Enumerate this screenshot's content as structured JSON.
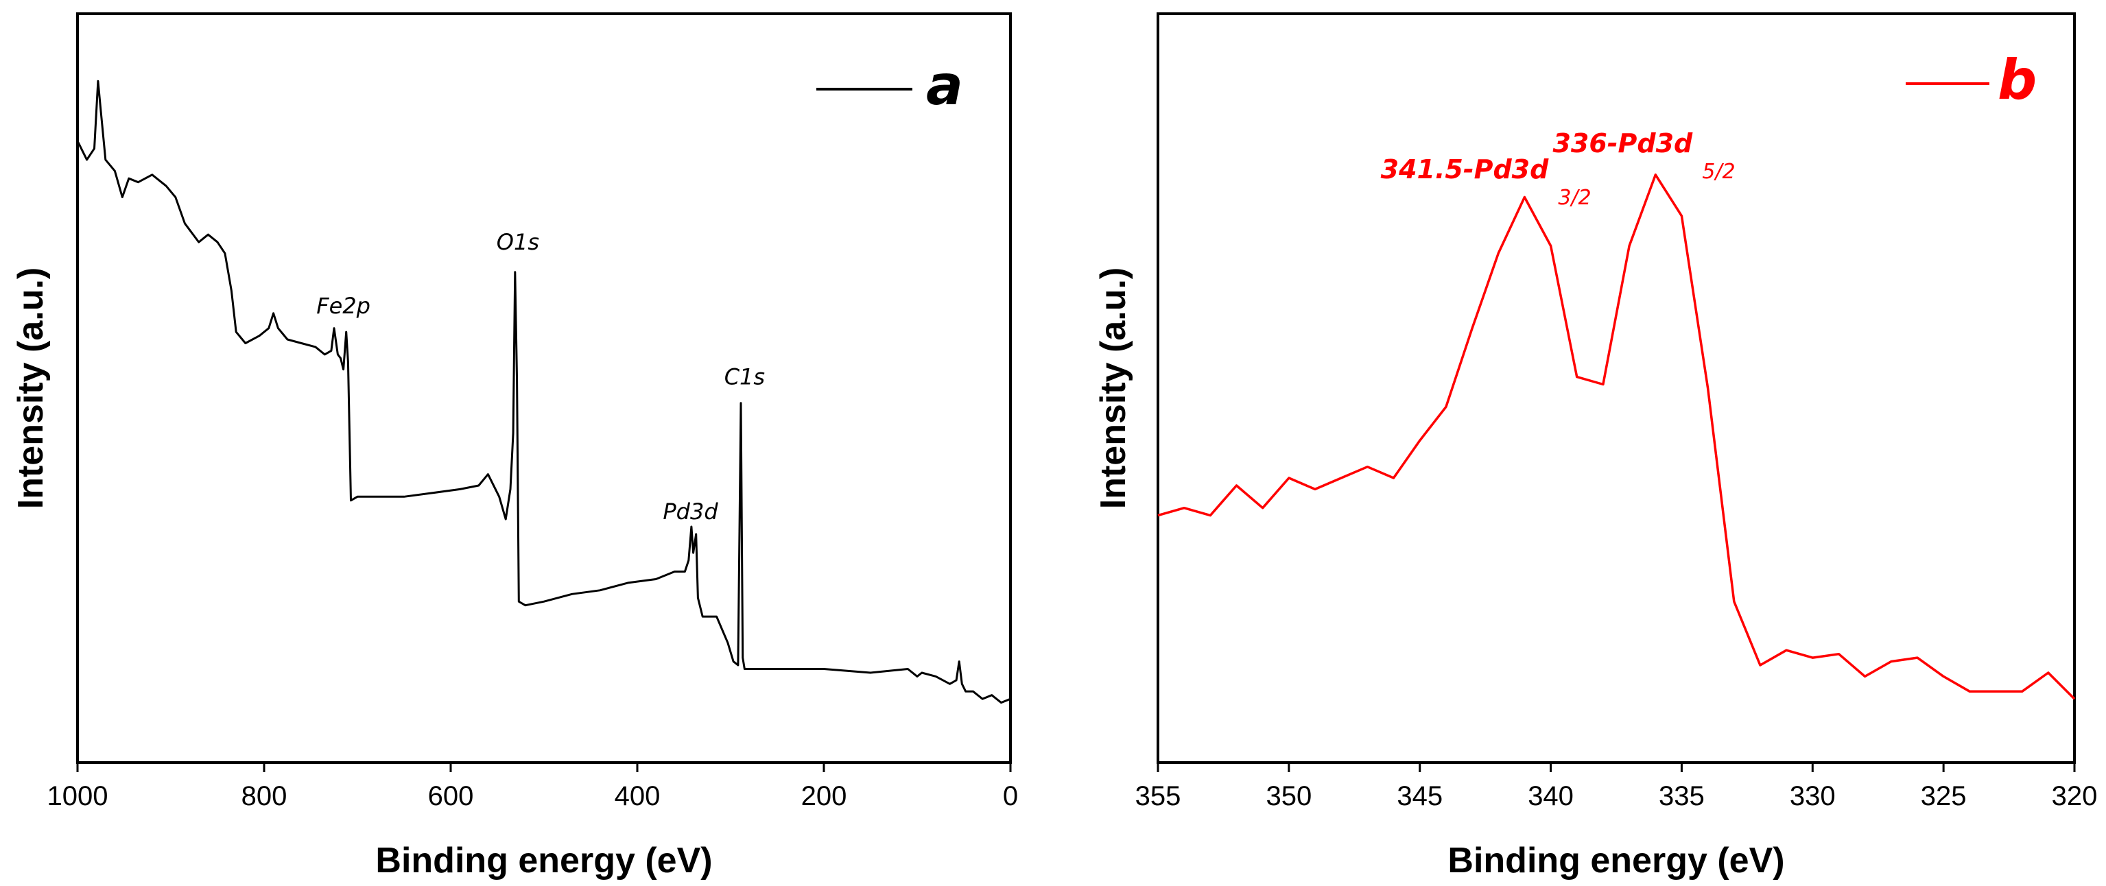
{
  "chart_data": [
    {
      "type": "line",
      "panel": "a",
      "xlabel": "Binding energy (eV)",
      "ylabel": "Intensity (a.u.)",
      "xlim": [
        1000,
        0
      ],
      "x_reversed": true,
      "ylim": [
        0,
        100
      ],
      "x_ticks": [
        1000,
        800,
        600,
        400,
        200,
        0
      ],
      "legend": {
        "label": "a",
        "color": "#000000",
        "position": "top-right"
      },
      "series": [
        {
          "name": "a",
          "color": "#000000",
          "x": [
            1000,
            990,
            982,
            978,
            975,
            970,
            960,
            952,
            945,
            935,
            920,
            905,
            895,
            885,
            870,
            860,
            850,
            842,
            835,
            830,
            820,
            805,
            795,
            790,
            785,
            775,
            760,
            745,
            735,
            728,
            725,
            721,
            718,
            715,
            712,
            710,
            707,
            700,
            680,
            650,
            620,
            590,
            570,
            560,
            548,
            541,
            536,
            533,
            531,
            529,
            527,
            520,
            500,
            470,
            440,
            410,
            380,
            360,
            349,
            345,
            342,
            340,
            337,
            335,
            330,
            315,
            303,
            297,
            292,
            289,
            287,
            285,
            283,
            280,
            265,
            230,
            200,
            150,
            110,
            100,
            95,
            80,
            65,
            58,
            55,
            52,
            48,
            40,
            30,
            20,
            10,
            0
          ],
          "y": [
            83,
            80.5,
            82,
            91,
            87,
            80.5,
            79,
            75.5,
            78,
            77.5,
            78.5,
            77,
            75.5,
            72,
            69.5,
            70.5,
            69.5,
            68,
            63,
            57.5,
            56,
            57,
            58,
            60,
            58,
            56.5,
            56,
            55.5,
            54.5,
            55,
            58,
            54.5,
            54,
            52.5,
            57.5,
            53.5,
            35,
            35.5,
            35.5,
            35.5,
            36,
            36.5,
            37,
            38.5,
            35.5,
            32.5,
            36.5,
            44,
            65.5,
            51,
            21.5,
            21,
            21.5,
            22.5,
            23,
            24,
            24.5,
            25.5,
            25.5,
            27,
            31.5,
            28,
            30.5,
            22,
            19.5,
            19.5,
            16,
            13.5,
            13,
            48,
            14,
            12.5,
            12.5,
            12.5,
            12.5,
            12.5,
            12.5,
            12,
            12.5,
            11.5,
            12,
            11.5,
            10.5,
            11,
            13.5,
            10.5,
            9.5,
            9.5,
            8.5,
            9,
            8,
            8.5
          ]
        }
      ],
      "annotations": [
        {
          "text": "Fe2p",
          "x": 715,
          "y": 60
        },
        {
          "text": "O1s",
          "x": 528,
          "y": 68.5
        },
        {
          "text": "Pd3d",
          "x": 343,
          "y": 32.5
        },
        {
          "text": "C1s",
          "x": 285,
          "y": 50.5
        }
      ]
    },
    {
      "type": "line",
      "panel": "b",
      "xlabel": "Binding energy (eV)",
      "ylabel": "Intensity (a.u.)",
      "xlim": [
        355,
        320
      ],
      "x_reversed": true,
      "ylim": [
        0,
        100
      ],
      "x_ticks": [
        355,
        350,
        345,
        340,
        335,
        330,
        325,
        320
      ],
      "legend": {
        "label": "b",
        "color": "#ff0000",
        "position": "top-right"
      },
      "series": [
        {
          "name": "b",
          "color": "#ff0000",
          "x": [
            355,
            354,
            353,
            352,
            351,
            350,
            349,
            348,
            347,
            346,
            345,
            344,
            343,
            342,
            341,
            340,
            339,
            338,
            337,
            336,
            335,
            334,
            333,
            332,
            331,
            330,
            329,
            328,
            327,
            326,
            325,
            324,
            323,
            322,
            321,
            320
          ],
          "y": [
            33,
            34,
            33,
            37,
            34,
            38,
            36.5,
            38,
            39.5,
            38,
            43,
            47.5,
            58,
            68,
            75.5,
            69,
            51.5,
            50.5,
            69,
            78.5,
            73,
            50,
            21.5,
            13,
            15,
            14,
            14.5,
            11.5,
            13.5,
            14,
            11.5,
            9.5,
            9.5,
            9.5,
            12,
            8.5
          ]
        }
      ],
      "annotations": [
        {
          "text": "341.5-Pd3d",
          "sub": "3/2",
          "x": 341.5,
          "y": 78
        },
        {
          "text": "336-Pd3d",
          "sub": "5/2",
          "x": 336,
          "y": 81.5
        }
      ]
    }
  ]
}
